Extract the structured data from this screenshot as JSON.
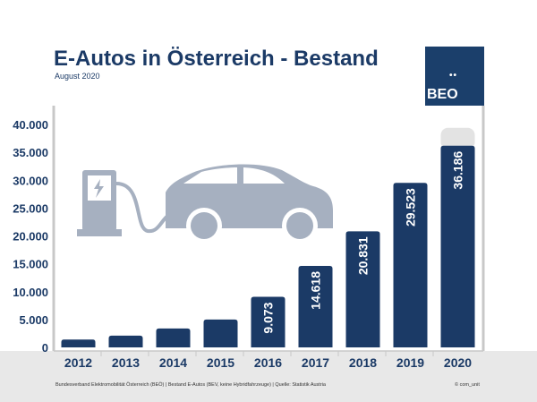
{
  "header": {
    "title": "E-Autos in Österreich - Bestand",
    "subtitle": "August 2020"
  },
  "logo": {
    "text": "BEO",
    "dots": "••"
  },
  "footer": {
    "source": "Bundesverband Elektromobilität Österreich (BEÖ) | Bestand E-Autos (BEV, keine Hybridfahrzeuge) | Quelle: Statistik Austria",
    "copyright": "© com_unit"
  },
  "colors": {
    "bar": "#1b3a66",
    "accent": "#1b3f6b",
    "background_bottom": "#e8e8e8",
    "icon": "#a6b0c0"
  },
  "chart_data": {
    "type": "bar",
    "title": "E-Autos in Österreich - Bestand",
    "categories": [
      "2012",
      "2013",
      "2014",
      "2015",
      "2016",
      "2017",
      "2018",
      "2019",
      "2020"
    ],
    "values": [
      1400,
      2100,
      3400,
      5000,
      9073,
      14618,
      20831,
      29523,
      36186
    ],
    "data_labels": [
      "",
      "",
      "",
      "",
      "9.073",
      "14.618",
      "20.831",
      "29.523",
      "36.186"
    ],
    "yticks": [
      "0",
      "5.000",
      "10.000",
      "15.000",
      "20.000",
      "25.000",
      "30.000",
      "35.000",
      "40.000"
    ],
    "ylim": [
      0,
      40000
    ],
    "grid": false,
    "xlabel": "",
    "ylabel": ""
  }
}
